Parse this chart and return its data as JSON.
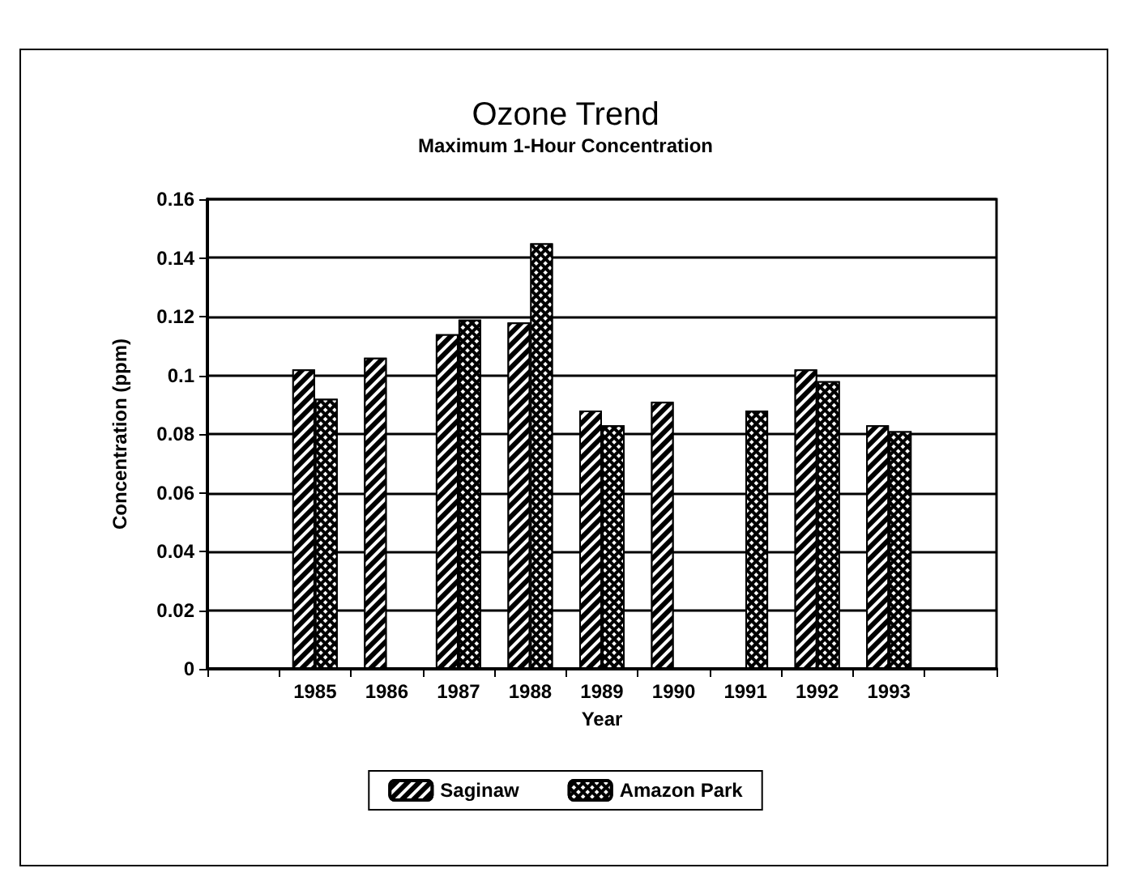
{
  "chart_data": {
    "type": "bar",
    "title": "Ozone Trend",
    "subtitle": "Maximum 1-Hour Concentration",
    "xlabel": "Year",
    "ylabel": "Concentration (ppm)",
    "categories": [
      null,
      "1985",
      "1986",
      "1987",
      "1988",
      "1989",
      "1990",
      "1991",
      "1992",
      "1993",
      null
    ],
    "series": [
      {
        "name": "Saginaw",
        "color": "#000000",
        "values": [
          null,
          0.102,
          0.106,
          0.114,
          0.118,
          0.088,
          0.091,
          null,
          0.102,
          0.083,
          null
        ]
      },
      {
        "name": "Amazon Park",
        "color": "#000000",
        "values": [
          null,
          0.092,
          null,
          0.119,
          0.145,
          0.083,
          null,
          0.088,
          0.098,
          0.081,
          null
        ]
      }
    ],
    "ylim": [
      0,
      0.16
    ],
    "yticks": [
      0,
      0.02,
      0.04,
      0.06,
      0.08,
      0.1,
      0.12,
      0.14,
      0.16
    ],
    "grid": "y",
    "legend": "bottom"
  }
}
